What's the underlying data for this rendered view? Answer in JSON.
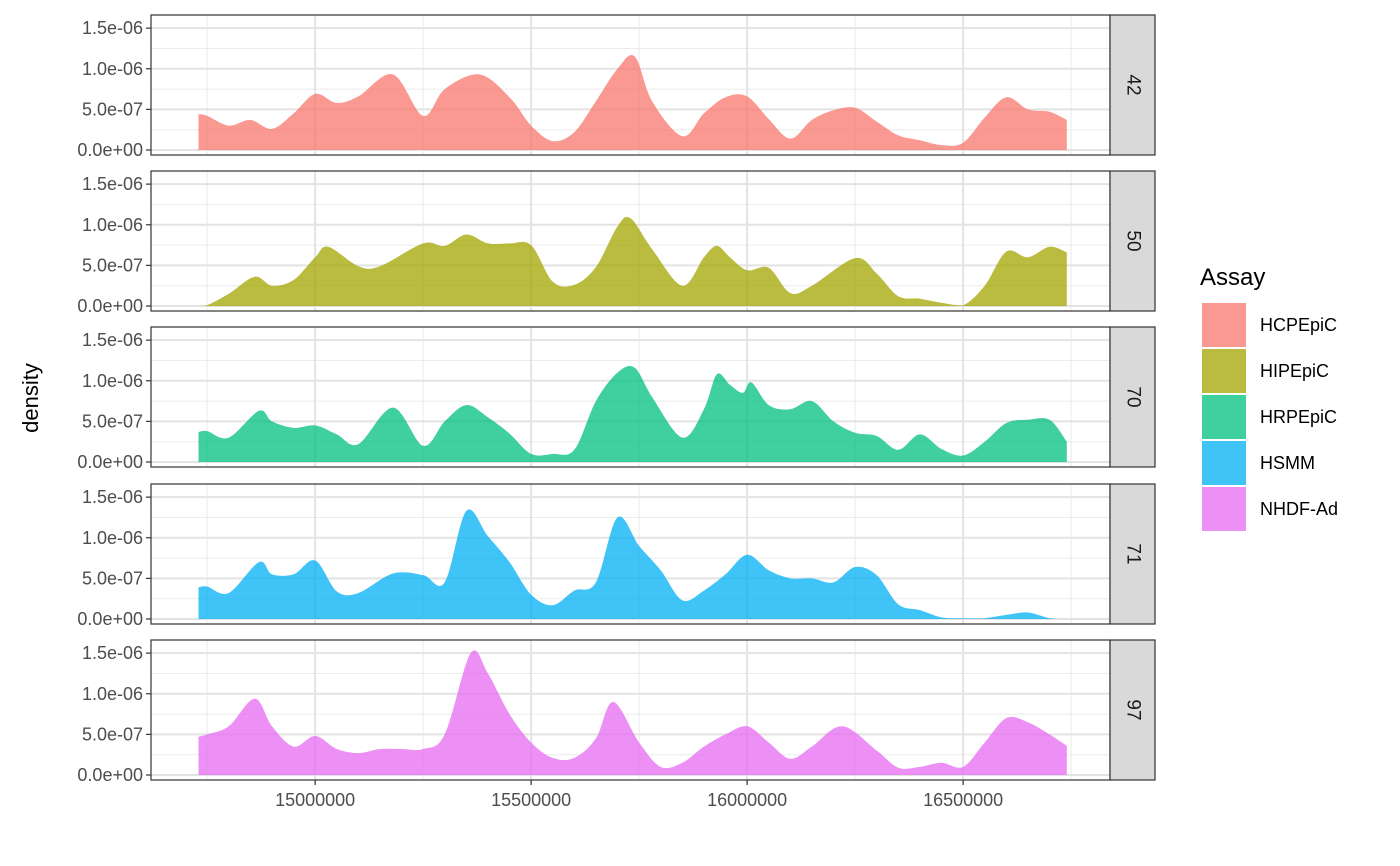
{
  "chart_data": {
    "type": "area",
    "subtype": "faceted-density",
    "ylabel": "density",
    "xlabel": "",
    "xlim": [
      14620000,
      16840000
    ],
    "ylim": [
      0,
      1.6e-06
    ],
    "x_ticks": [
      15000000,
      15500000,
      16000000,
      16500000
    ],
    "x_tick_labels": [
      "15000000",
      "15500000",
      "16000000",
      "16500000"
    ],
    "y_ticks": [
      0,
      5e-07,
      1e-06,
      1.5e-06
    ],
    "y_tick_labels": [
      "0.0e+00",
      "5.0e-07",
      "1.0e-06",
      "1.5e-06"
    ],
    "grid": true,
    "facet_strips_position": "right",
    "legend": {
      "title": "Assay",
      "position": "right"
    },
    "fill_alpha": 0.75,
    "series": [
      {
        "facet": "42",
        "name": "HCPEpiC",
        "color": "#F8766D",
        "x": [
          14730000,
          14750000,
          14800000,
          14850000,
          14900000,
          14950000,
          15000000,
          15050000,
          15100000,
          15180000,
          15250000,
          15300000,
          15380000,
          15450000,
          15500000,
          15550000,
          15600000,
          15650000,
          15700000,
          15740000,
          15780000,
          15850000,
          15900000,
          15950000,
          16000000,
          16050000,
          16100000,
          16150000,
          16200000,
          16250000,
          16300000,
          16350000,
          16400000,
          16450000,
          16500000,
          16550000,
          16600000,
          16650000,
          16700000,
          16740000
        ],
        "y": [
          4.4e-07,
          4.2e-07,
          3e-07,
          3.7e-07,
          2.6e-07,
          4.5e-07,
          6.9e-07,
          5.8e-07,
          6.6e-07,
          9.3e-07,
          4.2e-07,
          7.5e-07,
          9.3e-07,
          6.5e-07,
          3e-07,
          1.1e-07,
          2.2e-07,
          6e-07,
          1e-06,
          1.15e-06,
          6e-07,
          1.7e-07,
          4.5e-07,
          6.5e-07,
          6.6e-07,
          3.8e-07,
          1.4e-07,
          3.7e-07,
          4.9e-07,
          5.2e-07,
          3.5e-07,
          1.8e-07,
          1.2e-07,
          6e-08,
          9e-08,
          4e-07,
          6.5e-07,
          5e-07,
          4.7e-07,
          3.7e-07
        ]
      },
      {
        "facet": "50",
        "name": "HIPEpiC",
        "color": "#A3A500",
        "x": [
          14730000,
          14750000,
          14800000,
          14860000,
          14900000,
          14950000,
          15000000,
          15030000,
          15100000,
          15150000,
          15250000,
          15300000,
          15350000,
          15400000,
          15450000,
          15500000,
          15550000,
          15600000,
          15650000,
          15700000,
          15730000,
          15780000,
          15850000,
          15900000,
          15930000,
          15960000,
          16000000,
          16050000,
          16100000,
          16150000,
          16250000,
          16300000,
          16350000,
          16400000,
          16450000,
          16500000,
          16550000,
          16600000,
          16650000,
          16700000,
          16740000
        ],
        "y": [
          0,
          1e-08,
          1.5e-07,
          3.6e-07,
          2.5e-07,
          3.2e-07,
          6e-07,
          7.3e-07,
          4.9e-07,
          4.9e-07,
          7.7e-07,
          7.4e-07,
          8.8e-07,
          7.7e-07,
          7.7e-07,
          7.5e-07,
          3e-07,
          2.6e-07,
          4.8e-07,
          9.8e-07,
          1.08e-06,
          7e-07,
          2.5e-07,
          6e-07,
          7.4e-07,
          6e-07,
          4.4e-07,
          4.7e-07,
          1.6e-07,
          2.5e-07,
          5.9e-07,
          4e-07,
          1.2e-07,
          9e-08,
          4e-08,
          1e-08,
          2.5e-07,
          6.7e-07,
          6e-07,
          7.3e-07,
          6.6e-07
        ]
      },
      {
        "facet": "70",
        "name": "HRPEpiC",
        "color": "#00BF7D",
        "x": [
          14730000,
          14750000,
          14800000,
          14870000,
          14900000,
          14950000,
          15000000,
          15050000,
          15100000,
          15180000,
          15250000,
          15300000,
          15350000,
          15400000,
          15450000,
          15500000,
          15550000,
          15600000,
          15650000,
          15700000,
          15740000,
          15780000,
          15850000,
          15900000,
          15930000,
          15960000,
          15990000,
          16010000,
          16050000,
          16100000,
          16150000,
          16200000,
          16250000,
          16300000,
          16350000,
          16400000,
          16450000,
          16500000,
          16550000,
          16600000,
          16650000,
          16700000,
          16740000
        ],
        "y": [
          3.7e-07,
          3.8e-07,
          3e-07,
          6.3e-07,
          5e-07,
          4.2e-07,
          4.5e-07,
          3.4e-07,
          2.2e-07,
          6.7e-07,
          2e-07,
          5e-07,
          7e-07,
          5.5e-07,
          3.5e-07,
          1e-07,
          1e-07,
          1.5e-07,
          7.5e-07,
          1.1e-06,
          1.16e-06,
          8e-07,
          3e-07,
          6.5e-07,
          1.08e-06,
          9.5e-07,
          8.5e-07,
          9.8e-07,
          7e-07,
          6.5e-07,
          7.5e-07,
          5e-07,
          3.6e-07,
          3.2e-07,
          1.5e-07,
          3.4e-07,
          1.6e-07,
          8e-08,
          2.5e-07,
          4.8e-07,
          5.2e-07,
          5.2e-07,
          2.5e-07
        ]
      },
      {
        "facet": "71",
        "name": "HSMM",
        "color": "#00B0F6",
        "x": [
          14730000,
          14750000,
          14800000,
          14870000,
          14900000,
          14950000,
          15000000,
          15050000,
          15100000,
          15180000,
          15250000,
          15300000,
          15350000,
          15400000,
          15450000,
          15500000,
          15550000,
          15600000,
          15650000,
          15700000,
          15750000,
          15800000,
          15850000,
          15900000,
          15950000,
          16000000,
          16050000,
          16100000,
          16150000,
          16200000,
          16250000,
          16300000,
          16350000,
          16400000,
          16450000,
          16500000,
          16550000,
          16600000,
          16650000,
          16700000,
          16740000
        ],
        "y": [
          3.9e-07,
          4e-07,
          3.2e-07,
          7e-07,
          5.5e-07,
          5.5e-07,
          7.2e-07,
          3.4e-07,
          3.2e-07,
          5.6e-07,
          5.4e-07,
          4.5e-07,
          1.33e-06,
          1.02e-06,
          7e-07,
          3e-07,
          1.7e-07,
          3.5e-07,
          4.5e-07,
          1.25e-06,
          9e-07,
          6e-07,
          2.3e-07,
          3.5e-07,
          5.5e-07,
          7.9e-07,
          6e-07,
          5e-07,
          5e-07,
          4.5e-07,
          6.4e-07,
          5.4e-07,
          1.8e-07,
          1.1e-07,
          2e-08,
          1e-08,
          1e-08,
          5e-08,
          8e-08,
          1e-08,
          0
        ]
      },
      {
        "facet": "97",
        "name": "NHDF-Ad",
        "color": "#E76BF3",
        "x": [
          14730000,
          14750000,
          14800000,
          14860000,
          14900000,
          14950000,
          15000000,
          15050000,
          15100000,
          15150000,
          15200000,
          15250000,
          15300000,
          15360000,
          15400000,
          15450000,
          15500000,
          15550000,
          15600000,
          15650000,
          15690000,
          15750000,
          15800000,
          15850000,
          15900000,
          15950000,
          16000000,
          16050000,
          16100000,
          16150000,
          16220000,
          16300000,
          16350000,
          16400000,
          16450000,
          16500000,
          16550000,
          16600000,
          16650000,
          16700000,
          16740000
        ],
        "y": [
          4.7e-07,
          5e-07,
          6e-07,
          9.4e-07,
          6e-07,
          3.5e-07,
          4.8e-07,
          3.2e-07,
          2.7e-07,
          3.2e-07,
          3.2e-07,
          3.2e-07,
          5e-07,
          1.5e-06,
          1.25e-06,
          7.5e-07,
          4e-07,
          2.1e-07,
          2.1e-07,
          4.5e-07,
          9e-07,
          4e-07,
          1e-07,
          1.5e-07,
          3.5e-07,
          5e-07,
          6e-07,
          4e-07,
          2e-07,
          3.5e-07,
          6e-07,
          3e-07,
          9e-08,
          1e-07,
          1.5e-07,
          1e-07,
          4e-07,
          7e-07,
          6.5e-07,
          5e-07,
          3.6e-07
        ]
      }
    ]
  }
}
